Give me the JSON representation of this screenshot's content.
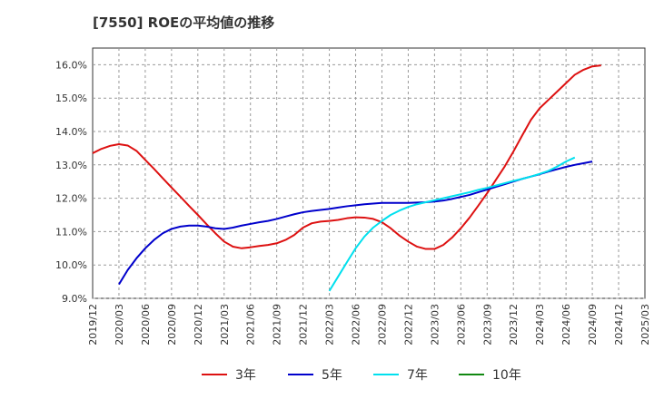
{
  "chart_data": {
    "type": "line",
    "title": "[7550]  ROEの平均値の推移",
    "xlabel": "",
    "ylabel": "",
    "ylim": [
      9.0,
      16.5
    ],
    "y_ticks": [
      "9.0%",
      "10.0%",
      "11.0%",
      "12.0%",
      "13.0%",
      "14.0%",
      "15.0%",
      "16.0%"
    ],
    "y_tick_values": [
      9,
      10,
      11,
      12,
      13,
      14,
      15,
      16
    ],
    "x_ticks": [
      "2019/12",
      "2020/03",
      "2020/06",
      "2020/09",
      "2020/12",
      "2021/03",
      "2021/06",
      "2021/09",
      "2021/12",
      "2022/03",
      "2022/06",
      "2022/09",
      "2022/12",
      "2023/03",
      "2023/06",
      "2023/09",
      "2023/12",
      "2024/03",
      "2024/06",
      "2024/09",
      "2024/12",
      "2025/03"
    ],
    "x_start": "2019/12",
    "x_end": "2025/03",
    "series": [
      {
        "name": "3年",
        "color": "#dd1111",
        "start": "2019/12",
        "values": [
          13.35,
          13.48,
          13.57,
          13.62,
          13.58,
          13.42,
          13.15,
          12.88,
          12.6,
          12.32,
          12.05,
          11.77,
          11.5,
          11.22,
          10.95,
          10.7,
          10.55,
          10.5,
          10.53,
          10.57,
          10.6,
          10.65,
          10.75,
          10.9,
          11.12,
          11.25,
          11.3,
          11.32,
          11.35,
          11.4,
          11.43,
          11.42,
          11.38,
          11.28,
          11.1,
          10.88,
          10.7,
          10.55,
          10.48,
          10.48,
          10.6,
          10.82,
          11.1,
          11.42,
          11.78,
          12.15,
          12.55,
          12.95,
          13.4,
          13.88,
          14.35,
          14.7,
          14.95,
          15.2,
          15.45,
          15.7,
          15.85,
          15.95,
          15.98
        ]
      },
      {
        "name": "5年",
        "color": "#0000cc",
        "start": "2020/03",
        "values": [
          9.42,
          9.85,
          10.2,
          10.5,
          10.75,
          10.95,
          11.08,
          11.15,
          11.18,
          11.18,
          11.15,
          11.1,
          11.08,
          11.12,
          11.18,
          11.23,
          11.28,
          11.32,
          11.38,
          11.45,
          11.52,
          11.58,
          11.62,
          11.65,
          11.68,
          11.72,
          11.76,
          11.79,
          11.82,
          11.84,
          11.86,
          11.86,
          11.86,
          11.86,
          11.87,
          11.88,
          11.9,
          11.93,
          11.98,
          12.04,
          12.1,
          12.18,
          12.26,
          12.34,
          12.42,
          12.5,
          12.58,
          12.65,
          12.72,
          12.8,
          12.87,
          12.94,
          13.0,
          13.05,
          13.1
        ]
      },
      {
        "name": "7年",
        "color": "#00e0ee",
        "start": "2022/03",
        "values": [
          9.22,
          9.65,
          10.08,
          10.5,
          10.85,
          11.12,
          11.32,
          11.5,
          11.63,
          11.74,
          11.82,
          11.88,
          11.94,
          12.0,
          12.06,
          12.12,
          12.18,
          12.25,
          12.31,
          12.38,
          12.45,
          12.52,
          12.58,
          12.65,
          12.73,
          12.82,
          12.95,
          13.1,
          13.22
        ]
      },
      {
        "name": "10年",
        "color": "#118811",
        "start": "2022/03",
        "values": []
      }
    ]
  }
}
